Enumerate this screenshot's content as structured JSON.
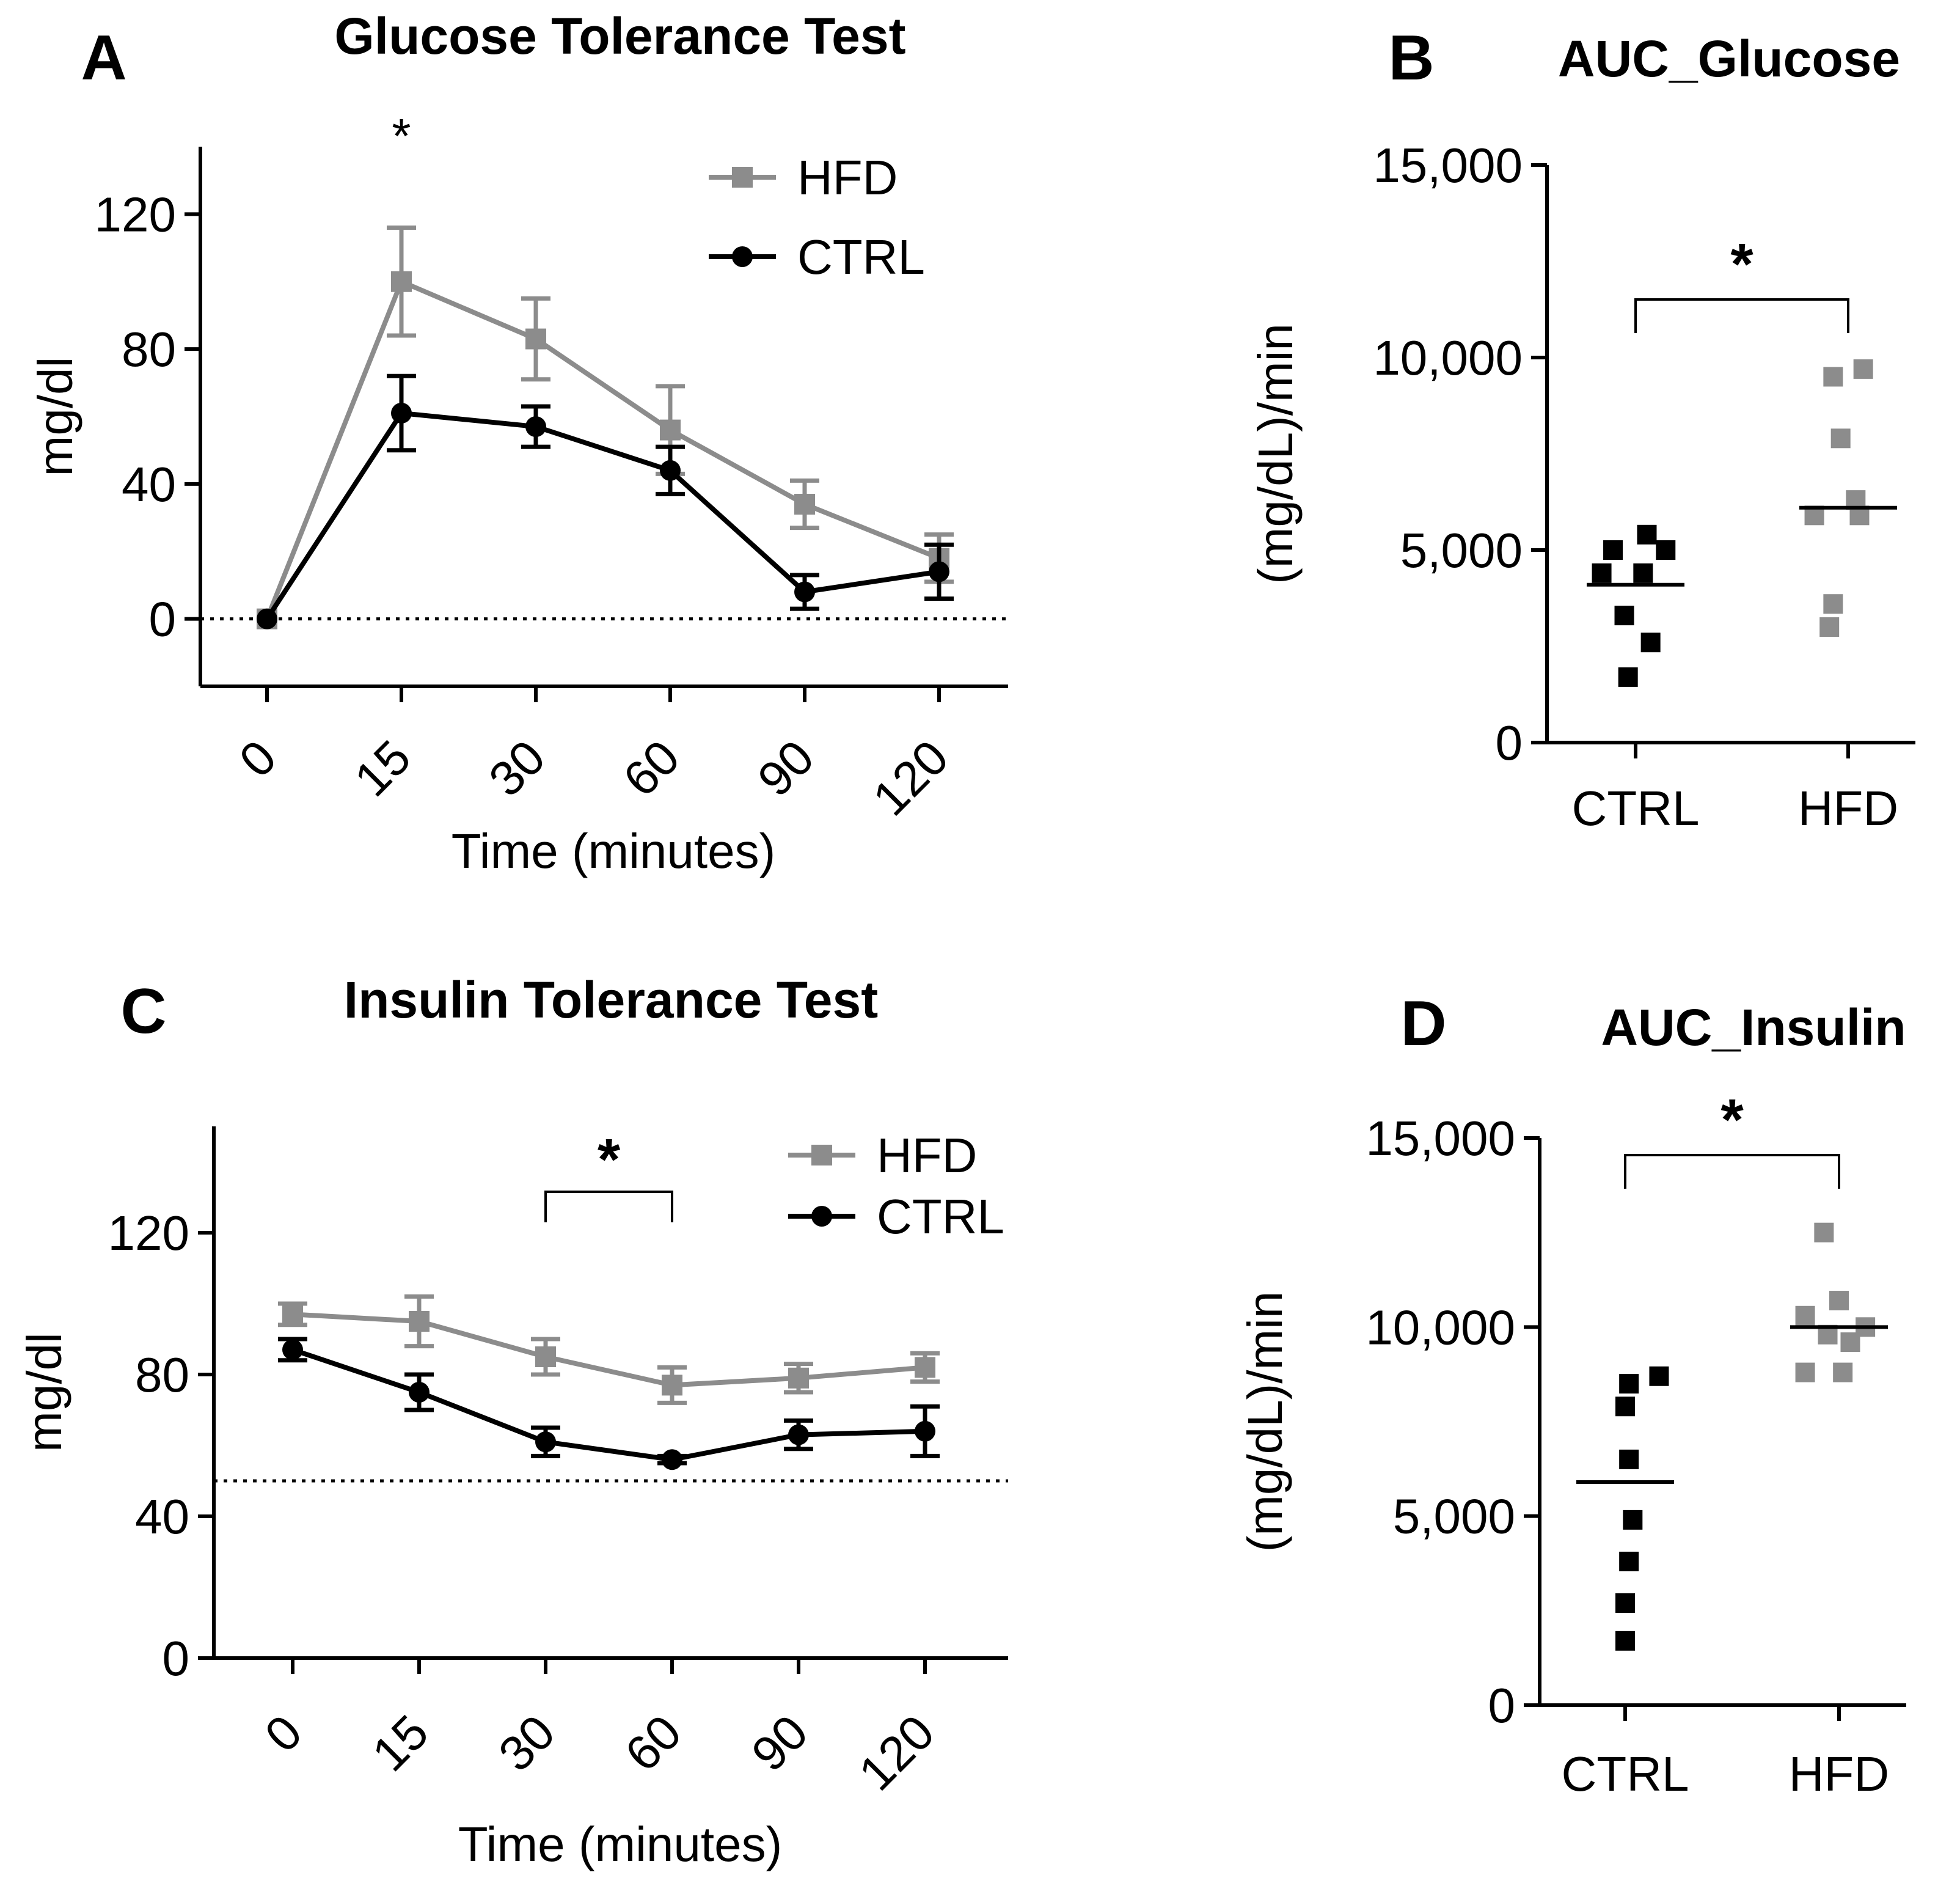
{
  "chart_data": [
    {
      "panel": "A",
      "type": "line",
      "title": "Glucose Tolerance Test",
      "xlabel": "Time (minutes)",
      "ylabel": "mg/dl",
      "categories": [
        "0",
        "15",
        "30",
        "60",
        "90",
        "120"
      ],
      "ylim": [
        -20,
        140
      ],
      "yticks": [
        "0",
        "40",
        "80",
        "120"
      ],
      "reference_line": 0,
      "series": [
        {
          "name": "HFD",
          "color": "#8c8c8c",
          "marker": "square",
          "values": [
            0,
            100,
            83,
            56,
            34,
            18
          ],
          "errors": [
            0,
            16,
            12,
            13,
            7,
            7
          ]
        },
        {
          "name": "CTRL",
          "color": "#000000",
          "marker": "circle",
          "values": [
            0,
            61,
            57,
            44,
            8,
            14
          ],
          "errors": [
            0,
            11,
            6,
            7,
            5,
            8
          ]
        }
      ],
      "annotations": [
        {
          "text": "*",
          "at_category": "15"
        }
      ]
    },
    {
      "panel": "B",
      "type": "scatter",
      "title": "AUC_Glucose",
      "xlabel": "",
      "ylabel": "(mg/dL)/min",
      "categories": [
        "CTRL",
        "HFD"
      ],
      "ylim": [
        0,
        15000
      ],
      "yticks": [
        "0",
        "5,000",
        "10,000",
        "15,000"
      ],
      "series": [
        {
          "name": "CTRL",
          "color": "#000000",
          "mean": 4100,
          "points": [
            [
              -0.12,
              5000
            ],
            [
              0.06,
              5400
            ],
            [
              0.16,
              5000
            ],
            [
              -0.18,
              4400
            ],
            [
              0.04,
              4400
            ],
            [
              -0.06,
              3300
            ],
            [
              0.08,
              2600
            ],
            [
              -0.04,
              1700
            ]
          ]
        },
        {
          "name": "HFD",
          "color": "#8c8c8c",
          "mean": 6100,
          "points": [
            [
              -0.08,
              9500
            ],
            [
              0.08,
              9700
            ],
            [
              -0.04,
              7900
            ],
            [
              0.04,
              6300
            ],
            [
              -0.18,
              5900
            ],
            [
              0.06,
              5900
            ],
            [
              -0.08,
              3600
            ],
            [
              -0.1,
              3000
            ]
          ]
        }
      ],
      "annotations": [
        {
          "text": "*",
          "between": [
            "CTRL",
            "HFD"
          ]
        }
      ]
    },
    {
      "panel": "C",
      "type": "line",
      "title": "Insulin Tolerance Test",
      "xlabel": "Time (minutes)",
      "ylabel": "mg/dl",
      "categories": [
        "0",
        "15",
        "30",
        "60",
        "90",
        "120"
      ],
      "ylim": [
        0,
        150
      ],
      "yticks": [
        "0",
        "40",
        "80",
        "120"
      ],
      "reference_line": 50,
      "series": [
        {
          "name": "HFD",
          "color": "#8c8c8c",
          "marker": "square",
          "values": [
            97,
            95,
            85,
            77,
            79,
            82
          ],
          "errors": [
            3,
            7,
            5,
            5,
            4,
            4
          ]
        },
        {
          "name": "CTRL",
          "color": "#000000",
          "marker": "circle",
          "values": [
            87,
            75,
            61,
            56,
            63,
            64
          ],
          "errors": [
            3,
            5,
            4,
            1,
            4,
            7
          ]
        }
      ],
      "annotations": [
        {
          "text": "*",
          "between_categories": [
            "30",
            "60"
          ]
        }
      ]
    },
    {
      "panel": "D",
      "type": "scatter",
      "title": "AUC_Insulin",
      "xlabel": "",
      "ylabel": "(mg/dL)/min",
      "categories": [
        "CTRL",
        "HFD"
      ],
      "ylim": [
        0,
        15000
      ],
      "yticks": [
        "0",
        "5,000",
        "10,000",
        "15,000"
      ],
      "series": [
        {
          "name": "CTRL",
          "color": "#000000",
          "mean": 5900,
          "points": [
            [
              0.18,
              8700
            ],
            [
              0.02,
              8500
            ],
            [
              0.0,
              7900
            ],
            [
              0.02,
              6500
            ],
            [
              0.04,
              4900
            ],
            [
              0.02,
              3800
            ],
            [
              0.0,
              2700
            ],
            [
              0.0,
              1700
            ]
          ]
        },
        {
          "name": "HFD",
          "color": "#8c8c8c",
          "mean": 10000,
          "points": [
            [
              -0.08,
              12500
            ],
            [
              0.0,
              10700
            ],
            [
              -0.18,
              10300
            ],
            [
              -0.06,
              9800
            ],
            [
              0.14,
              10000
            ],
            [
              0.06,
              9600
            ],
            [
              -0.18,
              8800
            ],
            [
              0.02,
              8800
            ]
          ]
        }
      ],
      "annotations": [
        {
          "text": "*",
          "between": [
            "CTRL",
            "HFD"
          ]
        }
      ]
    }
  ]
}
